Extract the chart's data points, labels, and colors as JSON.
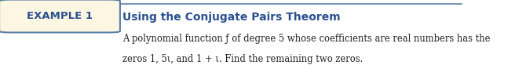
{
  "example_label": "EXAMPLE 1",
  "title": "Using the Conjugate Pairs Theorem",
  "body_line1": "A polynomial function ƒ of degree 5 whose coefficients are real numbers has the",
  "body_line2": "zeros 1, 5ι, and 1 + ι. Find the remaining two zeros.",
  "background_color": "#ffffff",
  "box_fill": "#fdf6e3",
  "box_edge": "#5b7fa6",
  "title_color": "#2a5090",
  "label_color": "#2a5090",
  "body_color": "#222222",
  "top_line_color": "#5b7fa6",
  "fig_width": 6.7,
  "fig_height": 0.83
}
